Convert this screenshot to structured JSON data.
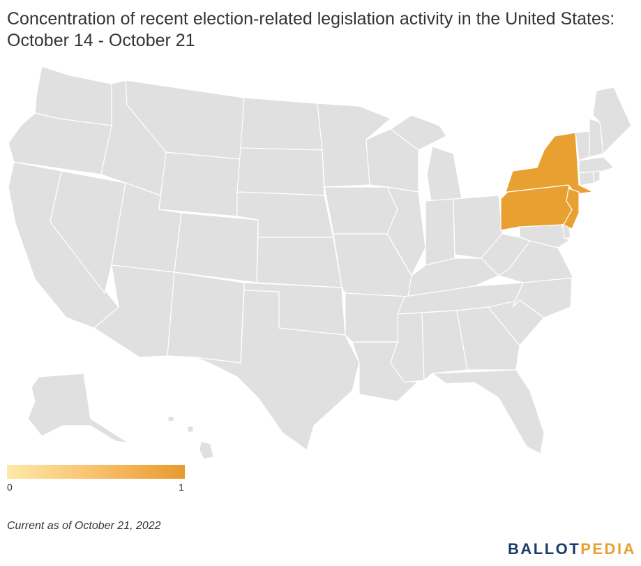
{
  "title": "Concentration of recent election-related legislation activity in the United States: October 14 - October 21",
  "legend": {
    "min": "0",
    "max": "1",
    "low_color": "#fde9a8",
    "high_color": "#e89a30"
  },
  "colors": {
    "no_activity": "#e0e0e0",
    "activity": "#e8a030",
    "border": "#ffffff"
  },
  "highlighted_states": [
    {
      "name": "New York",
      "value": 1
    },
    {
      "name": "Pennsylvania",
      "value": 1
    },
    {
      "name": "New Jersey",
      "value": 1
    }
  ],
  "footnote": "Current as of October 21, 2022",
  "brand": {
    "part1": "BALLOT",
    "part2": "PEDIA"
  }
}
